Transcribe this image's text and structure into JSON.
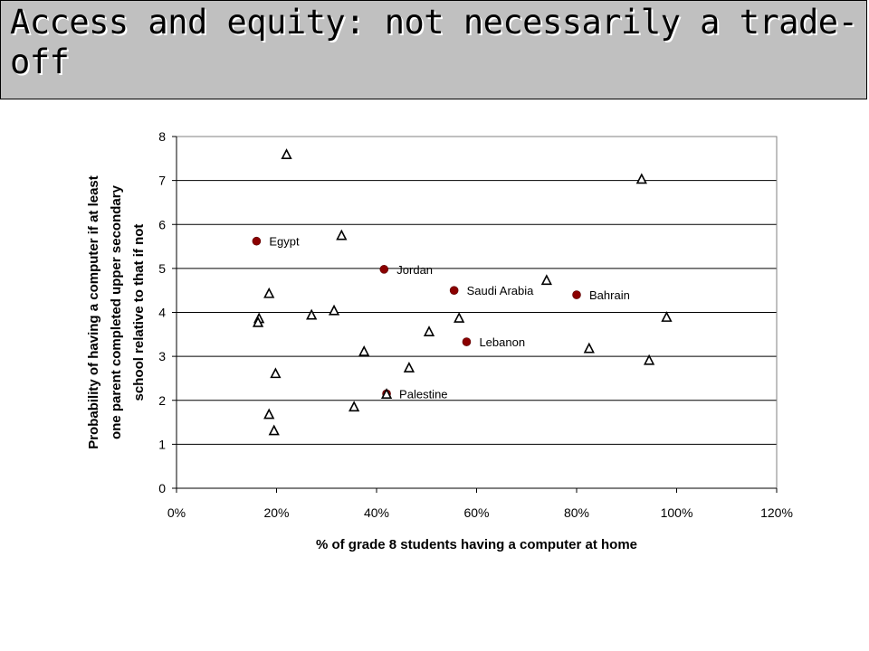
{
  "header": {
    "title": "Access and equity: not necessarily a trade-off"
  },
  "chart_data": {
    "type": "scatter",
    "xlabel": "% of grade 8 students having a computer at home",
    "ylabel": [
      "Probability of having a computer if at least",
      "one parent completed upper secondary",
      "school relative to that if not"
    ],
    "xlim": [
      0,
      1.2
    ],
    "ylim": [
      0,
      8
    ],
    "x_ticks": [
      "0%",
      "20%",
      "40%",
      "60%",
      "80%",
      "100%",
      "120%"
    ],
    "y_ticks": [
      "0",
      "1",
      "2",
      "3",
      "4",
      "5",
      "6",
      "7",
      "8"
    ],
    "grid": "horizontal",
    "colors": {
      "highlight": "#8b0000",
      "other": "#000000"
    },
    "series": [
      {
        "marker": "circle",
        "points": [
          {
            "x": 0.16,
            "y": 5.62,
            "label": "Egypt"
          },
          {
            "x": 0.415,
            "y": 4.98,
            "label": "Jordan"
          },
          {
            "x": 0.555,
            "y": 4.5,
            "label": "Saudi Arabia"
          },
          {
            "x": 0.8,
            "y": 4.4,
            "label": "Bahrain"
          },
          {
            "x": 0.58,
            "y": 3.33,
            "label": "Lebanon"
          },
          {
            "x": 0.42,
            "y": 2.15,
            "label": "Palestine"
          }
        ]
      },
      {
        "marker": "triangle",
        "points": [
          {
            "x": 0.22,
            "y": 7.58
          },
          {
            "x": 0.93,
            "y": 7.02
          },
          {
            "x": 0.33,
            "y": 5.74
          },
          {
            "x": 0.74,
            "y": 4.72
          },
          {
            "x": 0.185,
            "y": 4.42
          },
          {
            "x": 0.315,
            "y": 4.03
          },
          {
            "x": 0.27,
            "y": 3.93
          },
          {
            "x": 0.165,
            "y": 3.85
          },
          {
            "x": 0.163,
            "y": 3.76
          },
          {
            "x": 0.565,
            "y": 3.86
          },
          {
            "x": 0.98,
            "y": 3.88
          },
          {
            "x": 0.505,
            "y": 3.55
          },
          {
            "x": 0.825,
            "y": 3.17
          },
          {
            "x": 0.375,
            "y": 3.1
          },
          {
            "x": 0.945,
            "y": 2.9
          },
          {
            "x": 0.465,
            "y": 2.73
          },
          {
            "x": 0.198,
            "y": 2.6
          },
          {
            "x": 0.42,
            "y": 2.13
          },
          {
            "x": 0.355,
            "y": 1.84
          },
          {
            "x": 0.185,
            "y": 1.67
          },
          {
            "x": 0.195,
            "y": 1.3
          }
        ]
      }
    ]
  }
}
